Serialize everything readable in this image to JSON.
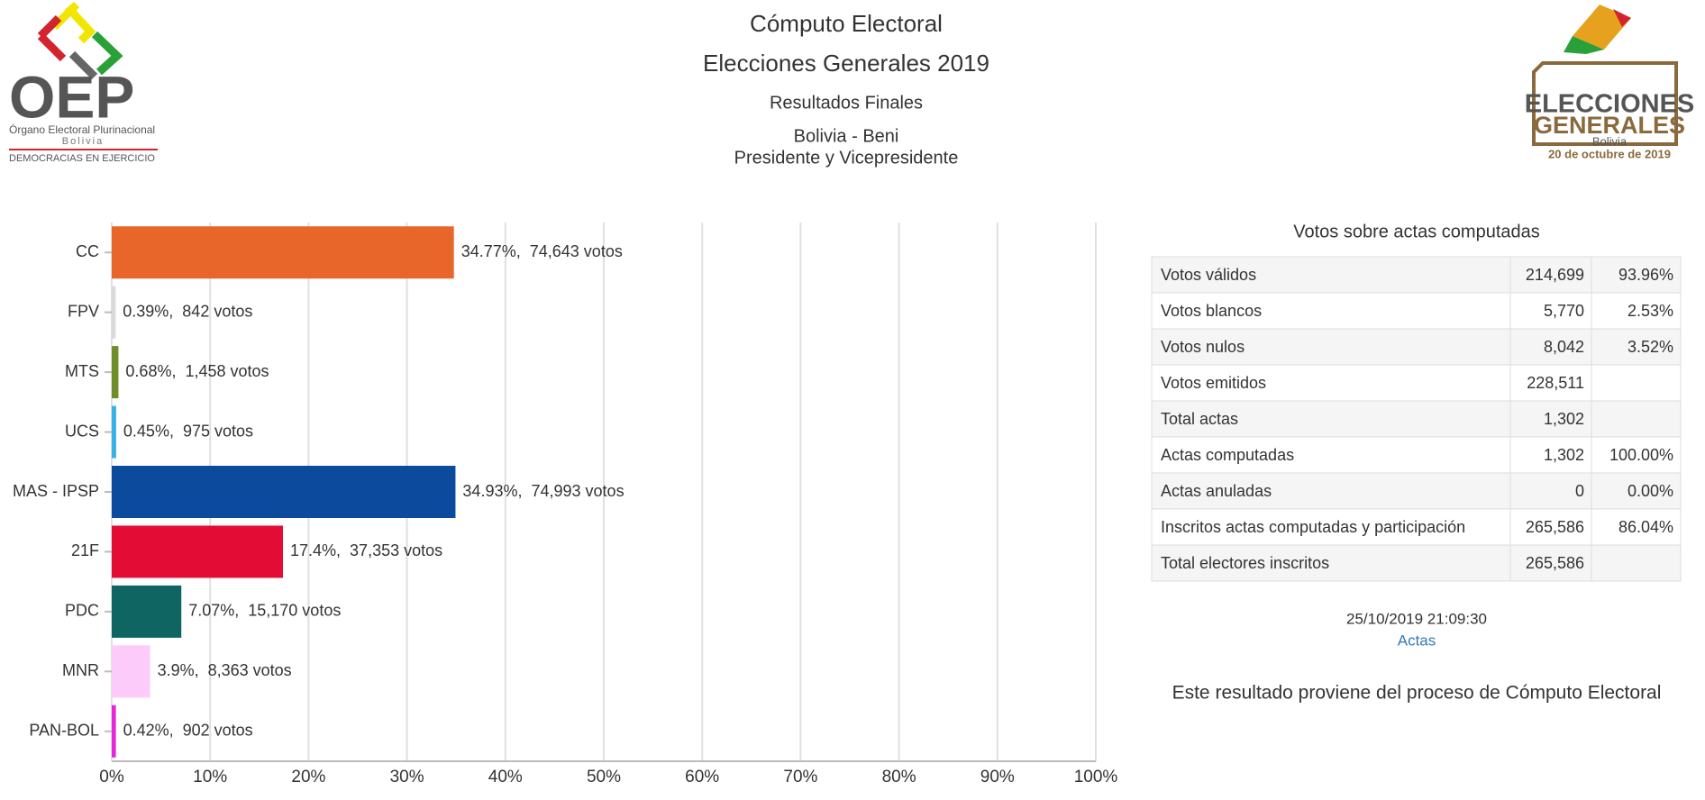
{
  "header": {
    "title": "Cómputo Electoral",
    "subtitle": "Elecciones Generales 2019",
    "status": "Resultados Finales",
    "region": "Bolivia - Beni",
    "office": "Presidente y Vicepresidente"
  },
  "logos": {
    "left": [
      "OEP",
      "Órgano Electoral Plurinacional",
      "Bolivia",
      "DEMOCRACIAS EN EJERCICIO"
    ],
    "right": [
      "ELECCIONES",
      "GENERALES",
      "Bolivia",
      "20 de octubre de 2019"
    ]
  },
  "chart_data": {
    "type": "bar",
    "orientation": "horizontal",
    "categories": [
      "CC",
      "FPV",
      "MTS",
      "UCS",
      "MAS - IPSP",
      "21F",
      "PDC",
      "MNR",
      "PAN-BOL"
    ],
    "values": [
      34.77,
      0.39,
      0.68,
      0.45,
      34.93,
      17.4,
      7.07,
      3.9,
      0.42
    ],
    "value_labels": [
      "34.77%,",
      "0.39%,",
      "0.68%,",
      "0.45%,",
      "34.93%,",
      "17.4%,",
      "7.07%,",
      "3.9%,",
      "0.42%,"
    ],
    "votes": [
      "74,643 votos",
      "842 votos",
      "1,458 votos",
      "975 votos",
      "74,993 votos",
      "37,353 votos",
      "15,170 votos",
      "8,363 votos",
      "902 votos"
    ],
    "colors": [
      "#e8662a",
      "#d9d9d9",
      "#6e8e2a",
      "#35b2e6",
      "#0b4a9c",
      "#e20c34",
      "#0e6562",
      "#fccbf9",
      "#e327d9"
    ],
    "xlim": [
      0,
      100
    ],
    "xticks": [
      {
        "value": 0,
        "label": "0%"
      },
      {
        "value": 10,
        "label": "10%"
      },
      {
        "value": 20,
        "label": "20%"
      },
      {
        "value": 30,
        "label": "30%"
      },
      {
        "value": 40,
        "label": "40%"
      },
      {
        "value": 50,
        "label": "50%"
      },
      {
        "value": 60,
        "label": "60%"
      },
      {
        "value": 70,
        "label": "70%"
      },
      {
        "value": 80,
        "label": "80%"
      },
      {
        "value": 90,
        "label": "90%"
      },
      {
        "value": 100,
        "label": "100%"
      }
    ],
    "grid": true
  },
  "table": {
    "title": "Votos sobre actas computadas",
    "rows": [
      [
        "Votos válidos",
        "214,699",
        "93.96%"
      ],
      [
        "Votos blancos",
        "5,770",
        "2.53%"
      ],
      [
        "Votos nulos",
        "8,042",
        "3.52%"
      ],
      [
        "Votos emitidos",
        "228,511"
      ],
      [
        "Total actas",
        "1,302"
      ],
      [
        "Actas computadas",
        "1,302",
        "100.00%"
      ],
      [
        "Actas anuladas",
        "0",
        "0.00%"
      ],
      [
        "Inscritos actas computadas y participación",
        "265,586",
        "86.04%"
      ],
      [
        "Total electores inscritos",
        "265,586"
      ]
    ]
  },
  "footer": {
    "timestamp": "25/10/2019 21:09:30",
    "link": "Actas",
    "note": "Este resultado proviene del proceso de Cómputo Electoral"
  }
}
